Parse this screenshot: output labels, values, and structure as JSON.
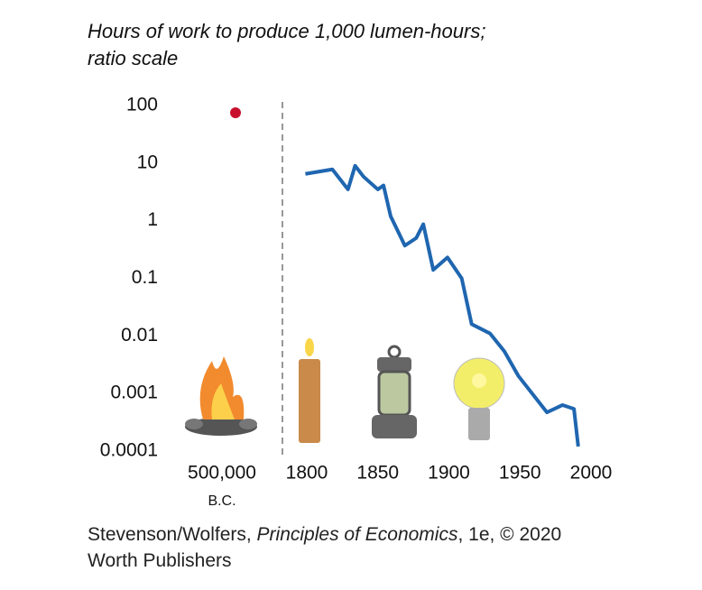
{
  "chart_data": {
    "type": "line",
    "title": "Hours of work to produce 1,000 lumen-hours;",
    "subtitle": "ratio scale",
    "log_scale": true,
    "prehistoric": {
      "label": "500,000",
      "sublabel": "B.C.",
      "value": 75,
      "color": "#c8102e"
    },
    "series": [
      {
        "color": "#1f66b0",
        "x": [
          1799,
          1818,
          1829,
          1834,
          1840,
          1850,
          1854,
          1859,
          1869,
          1877,
          1882,
          1889,
          1899,
          1909,
          1916,
          1929,
          1939,
          1949,
          1969,
          1980,
          1988,
          1991
        ],
        "values": [
          6.5,
          7.8,
          3.5,
          9.0,
          5.8,
          3.5,
          4.1,
          1.2,
          0.37,
          0.5,
          0.87,
          0.14,
          0.23,
          0.1,
          0.016,
          0.011,
          0.0054,
          0.002,
          0.00047,
          0.00063,
          0.00054,
          0.00012
        ]
      }
    ],
    "xlim": [
      1800,
      2000
    ],
    "xticks": [
      1800,
      1850,
      1900,
      1950,
      2000
    ],
    "ylim": [
      0.0001,
      100
    ],
    "yticks": [
      100,
      10,
      1,
      0.1,
      0.01,
      0.001,
      0.0001
    ]
  },
  "credit": {
    "line1_a": "Stevenson/Wolfers, ",
    "line1_b": "Principles of Economics",
    "line1_c": ", 1e, © 2020",
    "line2": "Worth Publishers"
  }
}
